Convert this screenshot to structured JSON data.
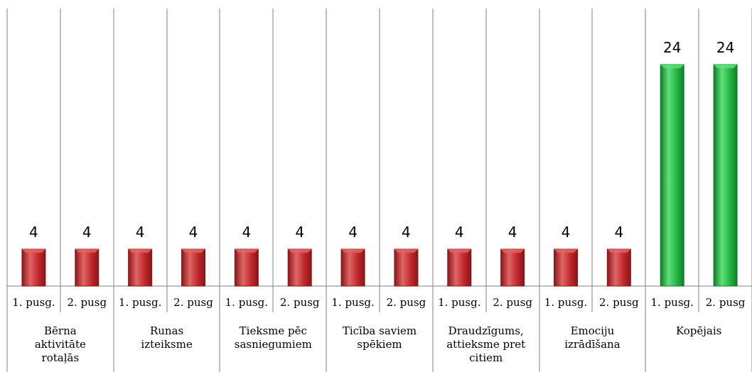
{
  "chart_data": {
    "type": "bar",
    "groups": [
      {
        "label_lines": [
          "Bērna",
          "aktivitāte",
          "rotaļās"
        ],
        "bars": [
          {
            "label": "1. pusg.",
            "value": 4,
            "color": "red"
          },
          {
            "label": "2. pusg",
            "value": 4,
            "color": "red"
          }
        ]
      },
      {
        "label_lines": [
          "Runas",
          "izteiksme"
        ],
        "bars": [
          {
            "label": "1. pusg.",
            "value": 4,
            "color": "red"
          },
          {
            "label": "2. pusg",
            "value": 4,
            "color": "red"
          }
        ]
      },
      {
        "label_lines": [
          "Tieksme pēc",
          "sasniegumiem"
        ],
        "bars": [
          {
            "label": "1. pusg.",
            "value": 4,
            "color": "red"
          },
          {
            "label": "2. pusg",
            "value": 4,
            "color": "red"
          }
        ]
      },
      {
        "label_lines": [
          "Ticība saviem",
          "spēkiem"
        ],
        "bars": [
          {
            "label": "1. pusg.",
            "value": 4,
            "color": "red"
          },
          {
            "label": "2. pusg",
            "value": 4,
            "color": "red"
          }
        ]
      },
      {
        "label_lines": [
          "Draudzīgums,",
          "attieksme pret",
          "citiem"
        ],
        "bars": [
          {
            "label": "1. pusg.",
            "value": 4,
            "color": "red"
          },
          {
            "label": "2. pusg",
            "value": 4,
            "color": "red"
          }
        ]
      },
      {
        "label_lines": [
          "Emociju",
          "izrādīšana"
        ],
        "bars": [
          {
            "label": "1. pusg.",
            "value": 4,
            "color": "red"
          },
          {
            "label": "2. pusg",
            "value": 4,
            "color": "red"
          }
        ]
      },
      {
        "label_lines": [
          "Kopējais"
        ],
        "bars": [
          {
            "label": "1. pusg.",
            "value": 24,
            "color": "green"
          },
          {
            "label": "2. pusg",
            "value": 24,
            "color": "green"
          }
        ]
      }
    ],
    "ylim": [
      0,
      24
    ],
    "grid": false,
    "data_labels": true,
    "colors": {
      "red": {
        "light": "#e06666",
        "mid": "#c0282c",
        "dark": "#8a1518"
      },
      "green": {
        "light": "#5fe07a",
        "mid": "#22b443",
        "dark": "#127d2a"
      }
    }
  }
}
